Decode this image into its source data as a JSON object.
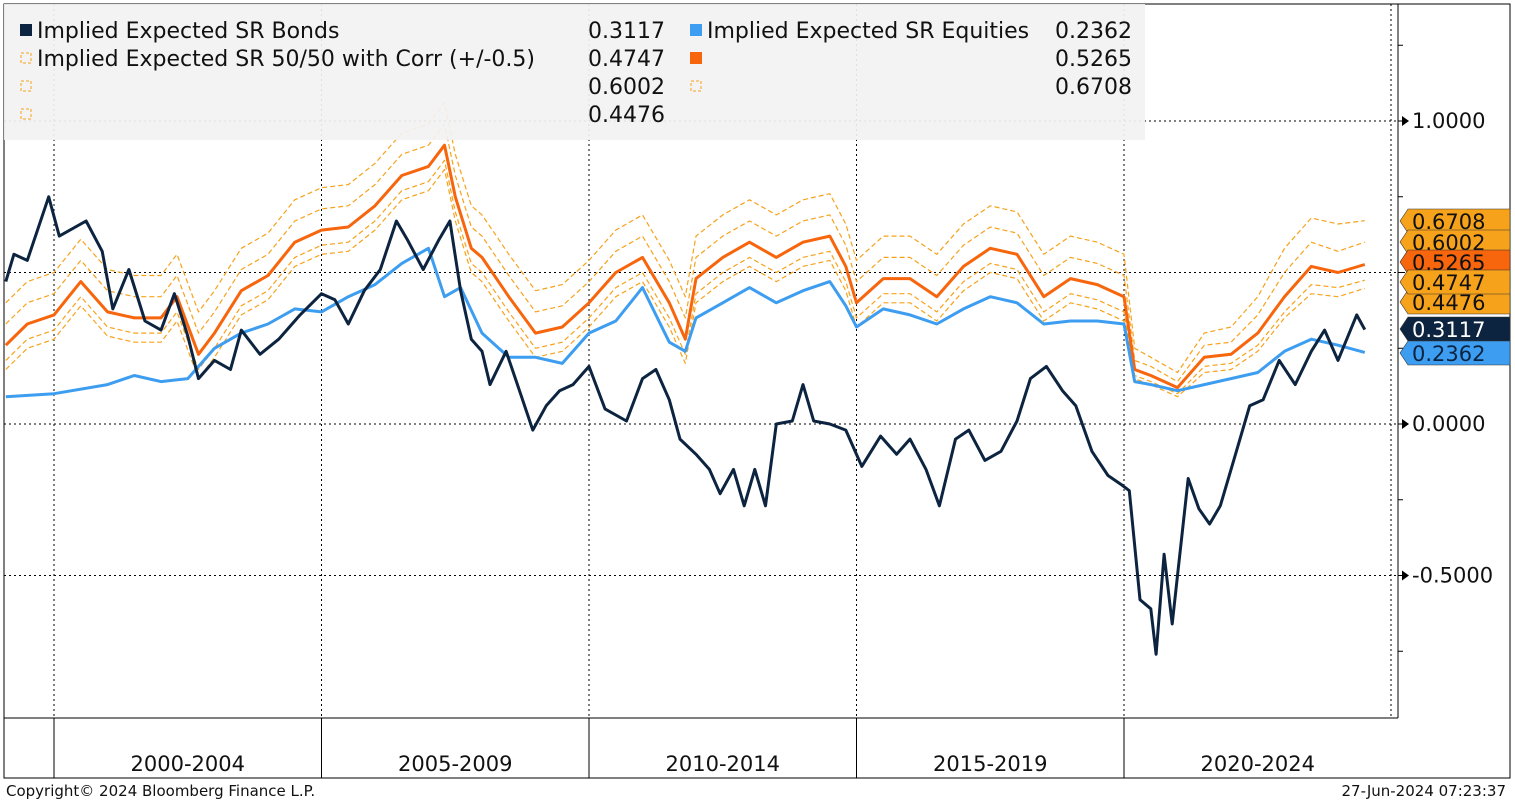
{
  "chart_data": {
    "type": "line",
    "title": "",
    "xlabel": "",
    "ylabel": "",
    "x_tick_labels": [
      "2000-2004",
      "2005-2009",
      "2010-2014",
      "2015-2019",
      "2020-2024"
    ],
    "y_ticks": [
      1.0,
      0.0,
      -0.5
    ],
    "y_tick_labels": [
      "1.0000",
      "0.0000",
      "-0.5000"
    ],
    "ylim": [
      -0.97,
      1.38
    ],
    "xlim": [
      1999.1,
      2024.55
    ],
    "grid": true,
    "y_axis_side": "right",
    "legend_placement": "top-left",
    "series": [
      {
        "name": "Implied Expected SR Bonds",
        "last": "0.3117",
        "color": "#0d2440",
        "style": "solid",
        "label_text": "#ffffff",
        "points": [
          [
            1999.1,
            0.47
          ],
          [
            1999.25,
            0.56
          ],
          [
            1999.5,
            0.54
          ],
          [
            1999.9,
            0.75
          ],
          [
            2000.1,
            0.62
          ],
          [
            2000.6,
            0.67
          ],
          [
            2000.9,
            0.57
          ],
          [
            2001.1,
            0.38
          ],
          [
            2001.4,
            0.51
          ],
          [
            2001.7,
            0.34
          ],
          [
            2002.0,
            0.31
          ],
          [
            2002.25,
            0.43
          ],
          [
            2002.5,
            0.29
          ],
          [
            2002.7,
            0.15
          ],
          [
            2003.0,
            0.21
          ],
          [
            2003.3,
            0.18
          ],
          [
            2003.5,
            0.31
          ],
          [
            2003.85,
            0.23
          ],
          [
            2004.2,
            0.28
          ],
          [
            2004.6,
            0.36
          ],
          [
            2005.0,
            0.43
          ],
          [
            2005.25,
            0.41
          ],
          [
            2005.5,
            0.33
          ],
          [
            2005.8,
            0.44
          ],
          [
            2006.1,
            0.51
          ],
          [
            2006.4,
            0.67
          ],
          [
            2006.6,
            0.61
          ],
          [
            2006.9,
            0.51
          ],
          [
            2007.2,
            0.61
          ],
          [
            2007.4,
            0.67
          ],
          [
            2007.6,
            0.44
          ],
          [
            2007.8,
            0.28
          ],
          [
            2008.0,
            0.24
          ],
          [
            2008.15,
            0.13
          ],
          [
            2008.45,
            0.24
          ],
          [
            2008.7,
            0.11
          ],
          [
            2008.95,
            -0.02
          ],
          [
            2009.2,
            0.06
          ],
          [
            2009.45,
            0.11
          ],
          [
            2009.7,
            0.13
          ],
          [
            2010.0,
            0.19
          ],
          [
            2010.3,
            0.05
          ],
          [
            2010.7,
            0.01
          ],
          [
            2011.0,
            0.15
          ],
          [
            2011.25,
            0.18
          ],
          [
            2011.5,
            0.08
          ],
          [
            2011.7,
            -0.05
          ],
          [
            2012.0,
            -0.1
          ],
          [
            2012.25,
            -0.15
          ],
          [
            2012.45,
            -0.23
          ],
          [
            2012.7,
            -0.15
          ],
          [
            2012.9,
            -0.27
          ],
          [
            2013.1,
            -0.15
          ],
          [
            2013.3,
            -0.27
          ],
          [
            2013.5,
            0.0
          ],
          [
            2013.8,
            0.01
          ],
          [
            2014.0,
            0.13
          ],
          [
            2014.2,
            0.01
          ],
          [
            2014.5,
            0.0
          ],
          [
            2014.8,
            -0.02
          ],
          [
            2015.1,
            -0.14
          ],
          [
            2015.45,
            -0.04
          ],
          [
            2015.75,
            -0.1
          ],
          [
            2016.0,
            -0.05
          ],
          [
            2016.3,
            -0.15
          ],
          [
            2016.55,
            -0.27
          ],
          [
            2016.85,
            -0.05
          ],
          [
            2017.1,
            -0.02
          ],
          [
            2017.4,
            -0.12
          ],
          [
            2017.7,
            -0.09
          ],
          [
            2018.0,
            0.01
          ],
          [
            2018.25,
            0.15
          ],
          [
            2018.55,
            0.19
          ],
          [
            2018.85,
            0.11
          ],
          [
            2019.1,
            0.06
          ],
          [
            2019.4,
            -0.09
          ],
          [
            2019.7,
            -0.17
          ],
          [
            2019.95,
            -0.2
          ],
          [
            2020.1,
            -0.22
          ],
          [
            2020.3,
            -0.58
          ],
          [
            2020.5,
            -0.61
          ],
          [
            2020.6,
            -0.76
          ],
          [
            2020.75,
            -0.43
          ],
          [
            2020.9,
            -0.66
          ],
          [
            2021.0,
            -0.5
          ],
          [
            2021.2,
            -0.18
          ],
          [
            2021.4,
            -0.28
          ],
          [
            2021.6,
            -0.33
          ],
          [
            2021.8,
            -0.27
          ],
          [
            2022.05,
            -0.12
          ],
          [
            2022.35,
            0.06
          ],
          [
            2022.6,
            0.08
          ],
          [
            2022.9,
            0.21
          ],
          [
            2023.2,
            0.13
          ],
          [
            2023.5,
            0.24
          ],
          [
            2023.75,
            0.31
          ],
          [
            2024.0,
            0.21
          ],
          [
            2024.35,
            0.36
          ],
          [
            2024.5,
            0.3117
          ]
        ]
      },
      {
        "name": "Implied Expected SR Equities",
        "last": "0.2362",
        "color": "#3d9df0",
        "style": "solid",
        "label_text": "#0d2440",
        "points": [
          [
            1999.1,
            0.09
          ],
          [
            2000,
            0.1
          ],
          [
            2001,
            0.13
          ],
          [
            2001.5,
            0.16
          ],
          [
            2002,
            0.14
          ],
          [
            2002.5,
            0.15
          ],
          [
            2003,
            0.25
          ],
          [
            2003.5,
            0.3
          ],
          [
            2004,
            0.33
          ],
          [
            2004.5,
            0.38
          ],
          [
            2005,
            0.37
          ],
          [
            2005.5,
            0.42
          ],
          [
            2006,
            0.46
          ],
          [
            2006.5,
            0.53
          ],
          [
            2007,
            0.58
          ],
          [
            2007.3,
            0.42
          ],
          [
            2007.6,
            0.45
          ],
          [
            2008,
            0.3
          ],
          [
            2008.5,
            0.22
          ],
          [
            2009,
            0.22
          ],
          [
            2009.5,
            0.2
          ],
          [
            2010,
            0.3
          ],
          [
            2010.5,
            0.34
          ],
          [
            2011,
            0.45
          ],
          [
            2011.5,
            0.27
          ],
          [
            2011.8,
            0.24
          ],
          [
            2012,
            0.35
          ],
          [
            2012.5,
            0.4
          ],
          [
            2013,
            0.45
          ],
          [
            2013.5,
            0.4
          ],
          [
            2014,
            0.44
          ],
          [
            2014.5,
            0.47
          ],
          [
            2014.8,
            0.39
          ],
          [
            2015,
            0.32
          ],
          [
            2015.5,
            0.38
          ],
          [
            2016,
            0.36
          ],
          [
            2016.5,
            0.33
          ],
          [
            2017,
            0.38
          ],
          [
            2017.5,
            0.42
          ],
          [
            2018,
            0.4
          ],
          [
            2018.5,
            0.33
          ],
          [
            2019,
            0.34
          ],
          [
            2019.5,
            0.34
          ],
          [
            2020,
            0.33
          ],
          [
            2020.2,
            0.14
          ],
          [
            2020.5,
            0.13
          ],
          [
            2021,
            0.11
          ],
          [
            2021.5,
            0.13
          ],
          [
            2022,
            0.15
          ],
          [
            2022.5,
            0.17
          ],
          [
            2023,
            0.24
          ],
          [
            2023.5,
            0.28
          ],
          [
            2024,
            0.26
          ],
          [
            2024.5,
            0.2362
          ]
        ]
      }
    ],
    "portfolio_x": [
      1999.1,
      1999.5,
      2000,
      2000.5,
      2001,
      2001.5,
      2002,
      2002.3,
      2002.7,
      2003,
      2003.5,
      2004,
      2004.5,
      2005,
      2005.5,
      2006,
      2006.5,
      2007,
      2007.3,
      2007.5,
      2007.8,
      2008,
      2008.5,
      2009,
      2009.5,
      2010,
      2010.5,
      2011,
      2011.5,
      2011.8,
      2012,
      2012.5,
      2013,
      2013.5,
      2014,
      2014.5,
      2014.8,
      2015,
      2015.5,
      2016,
      2016.5,
      2017,
      2017.5,
      2018,
      2018.5,
      2019,
      2019.5,
      2020,
      2020.2,
      2020.5,
      2021,
      2021.5,
      2022,
      2022.5,
      2023,
      2023.5,
      2024,
      2024.5
    ],
    "portfolio_series": [
      {
        "name": "Implied Expected SR 50/50 with Corr (+/-0.5)",
        "last": "0.4747",
        "color": "#f7a21b",
        "style": "dashed",
        "label_text": "#111111",
        "values": [
          0.21,
          0.28,
          0.31,
          0.42,
          0.32,
          0.3,
          0.3,
          0.37,
          0.18,
          0.25,
          0.39,
          0.44,
          0.55,
          0.59,
          0.6,
          0.67,
          0.77,
          0.8,
          0.87,
          0.7,
          0.53,
          0.5,
          0.37,
          0.25,
          0.27,
          0.35,
          0.45,
          0.5,
          0.35,
          0.23,
          0.43,
          0.5,
          0.55,
          0.5,
          0.55,
          0.57,
          0.47,
          0.35,
          0.43,
          0.43,
          0.37,
          0.47,
          0.53,
          0.51,
          0.37,
          0.43,
          0.41,
          0.37,
          0.16,
          0.14,
          0.1,
          0.19,
          0.2,
          0.26,
          0.37,
          0.46,
          0.45,
          0.4747
        ]
      },
      {
        "name": "",
        "last": "0.5265",
        "color": "#f7650c",
        "style": "solid",
        "label_text": "#111111",
        "values": [
          0.26,
          0.33,
          0.36,
          0.47,
          0.37,
          0.35,
          0.35,
          0.42,
          0.23,
          0.3,
          0.44,
          0.49,
          0.6,
          0.64,
          0.65,
          0.72,
          0.82,
          0.85,
          0.92,
          0.75,
          0.58,
          0.55,
          0.42,
          0.3,
          0.32,
          0.4,
          0.5,
          0.55,
          0.4,
          0.28,
          0.48,
          0.55,
          0.6,
          0.55,
          0.6,
          0.62,
          0.52,
          0.4,
          0.48,
          0.48,
          0.42,
          0.52,
          0.58,
          0.56,
          0.42,
          0.48,
          0.46,
          0.42,
          0.18,
          0.16,
          0.12,
          0.22,
          0.23,
          0.3,
          0.42,
          0.52,
          0.5,
          0.5265
        ]
      },
      {
        "name": "",
        "last": "0.6002",
        "color": "#f7a21b",
        "style": "dashed",
        "label_text": "#111111",
        "values": [
          0.33,
          0.4,
          0.43,
          0.54,
          0.44,
          0.42,
          0.42,
          0.49,
          0.3,
          0.37,
          0.51,
          0.56,
          0.67,
          0.71,
          0.72,
          0.79,
          0.89,
          0.92,
          0.99,
          0.82,
          0.65,
          0.62,
          0.49,
          0.37,
          0.39,
          0.47,
          0.57,
          0.62,
          0.47,
          0.35,
          0.55,
          0.62,
          0.67,
          0.62,
          0.67,
          0.69,
          0.59,
          0.47,
          0.55,
          0.55,
          0.49,
          0.59,
          0.65,
          0.63,
          0.49,
          0.55,
          0.53,
          0.49,
          0.21,
          0.19,
          0.14,
          0.26,
          0.27,
          0.36,
          0.5,
          0.6,
          0.57,
          0.6002
        ]
      },
      {
        "name": "",
        "last": "0.6708",
        "color": "#f7a21b",
        "style": "dashed",
        "label_text": "#111111",
        "values": [
          0.4,
          0.47,
          0.5,
          0.61,
          0.51,
          0.49,
          0.49,
          0.56,
          0.37,
          0.44,
          0.58,
          0.63,
          0.74,
          0.78,
          0.79,
          0.86,
          0.96,
          0.99,
          1.06,
          0.89,
          0.72,
          0.69,
          0.56,
          0.44,
          0.46,
          0.54,
          0.64,
          0.69,
          0.54,
          0.42,
          0.62,
          0.69,
          0.74,
          0.69,
          0.74,
          0.76,
          0.66,
          0.54,
          0.62,
          0.62,
          0.56,
          0.66,
          0.72,
          0.7,
          0.56,
          0.62,
          0.6,
          0.56,
          0.25,
          0.22,
          0.17,
          0.3,
          0.32,
          0.42,
          0.58,
          0.68,
          0.66,
          0.6708
        ]
      },
      {
        "name": "",
        "last": "0.4476",
        "color": "#f7a21b",
        "style": "dashed",
        "label_text": "#111111",
        "values": [
          0.18,
          0.25,
          0.28,
          0.39,
          0.29,
          0.27,
          0.27,
          0.34,
          0.15,
          0.22,
          0.36,
          0.41,
          0.52,
          0.56,
          0.57,
          0.64,
          0.74,
          0.77,
          0.84,
          0.67,
          0.5,
          0.47,
          0.34,
          0.22,
          0.24,
          0.32,
          0.42,
          0.47,
          0.32,
          0.2,
          0.4,
          0.47,
          0.52,
          0.47,
          0.52,
          0.54,
          0.44,
          0.32,
          0.4,
          0.4,
          0.34,
          0.44,
          0.5,
          0.48,
          0.34,
          0.4,
          0.38,
          0.34,
          0.15,
          0.13,
          0.09,
          0.17,
          0.18,
          0.24,
          0.35,
          0.43,
          0.42,
          0.4476
        ]
      }
    ]
  },
  "footer": {
    "copyright": "Copyright© 2024 Bloomberg Finance L.P.",
    "timestamp": "27-Jun-2024 07:23:37"
  }
}
